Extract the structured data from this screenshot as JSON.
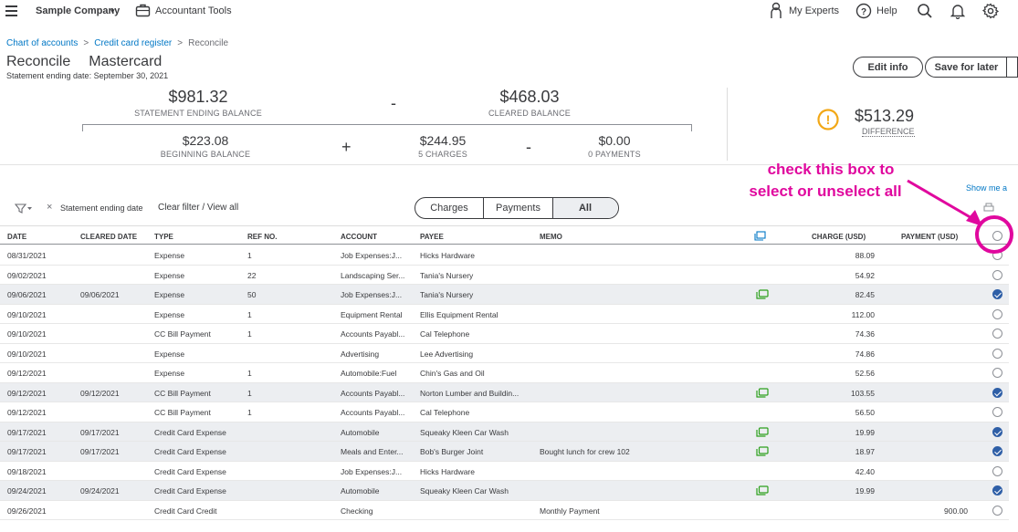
{
  "topbar": {
    "company": "Sample Company",
    "accountant_tools": "Accountant Tools",
    "my_experts": "My Experts",
    "help": "Help",
    "icons": [
      "menu-icon",
      "briefcase-icon",
      "person-icon",
      "help-icon",
      "search-icon",
      "bell-icon",
      "gear-icon"
    ]
  },
  "breadcrumb": {
    "items": [
      "Chart of accounts",
      "Credit card register",
      "Reconcile"
    ]
  },
  "header": {
    "title": "Reconcile",
    "account": "Mastercard",
    "statement_date": "Statement ending date: September 30, 2021",
    "edit_info": "Edit info",
    "save_for_later": "Save for later"
  },
  "summary": {
    "statement_ending_balance": "$981.32",
    "statement_ending_label": "STATEMENT ENDING BALANCE",
    "minus1": "-",
    "cleared_balance": "$468.03",
    "cleared_label": "CLEARED BALANCE",
    "beginning_balance": "$223.08",
    "beginning_label": "BEGINNING BALANCE",
    "plus": "+",
    "charges": "$244.95",
    "charges_label": "5 CHARGES",
    "minus2": "-",
    "payments": "$0.00",
    "payments_label": "0 PAYMENTS",
    "difference": "$513.29",
    "difference_label": "DIFFERENCE",
    "warning_symbol": "!"
  },
  "annotation": {
    "line1": "check this box to",
    "line2": "select or unselect all",
    "color": "#e0089e"
  },
  "toolbar": {
    "show_me": "Show me a",
    "filter_text": "Statement ending date",
    "clear_x": "×",
    "clear_filter": "Clear filter / View all",
    "tabs": [
      "Charges",
      "Payments",
      "All"
    ],
    "active_tab": "All"
  },
  "table": {
    "columns": {
      "date": "DATE",
      "cleared_date": "CLEARED DATE",
      "type": "TYPE",
      "ref_no": "REF NO.",
      "account": "ACCOUNT",
      "payee": "PAYEE",
      "memo": "MEMO",
      "charge": "CHARGE (USD)",
      "payment": "PAYMENT (USD)"
    },
    "rows": [
      {
        "date": "08/31/2021",
        "cleared": "",
        "type": "Expense",
        "ref": "1",
        "account": "Job Expenses:J...",
        "payee": "Hicks Hardware",
        "memo": "",
        "charge": "88.09",
        "payment": "",
        "attachment": false,
        "checked": false
      },
      {
        "date": "09/02/2021",
        "cleared": "",
        "type": "Expense",
        "ref": "22",
        "account": "Landscaping Ser...",
        "payee": "Tania's Nursery",
        "memo": "",
        "charge": "54.92",
        "payment": "",
        "attachment": false,
        "checked": false
      },
      {
        "date": "09/06/2021",
        "cleared": "09/06/2021",
        "type": "Expense",
        "ref": "50",
        "account": "Job Expenses:J...",
        "payee": "Tania's Nursery",
        "memo": "",
        "charge": "82.45",
        "payment": "",
        "attachment": true,
        "checked": true
      },
      {
        "date": "09/10/2021",
        "cleared": "",
        "type": "Expense",
        "ref": "1",
        "account": "Equipment Rental",
        "payee": "Ellis Equipment Rental",
        "memo": "",
        "charge": "112.00",
        "payment": "",
        "attachment": false,
        "checked": false
      },
      {
        "date": "09/10/2021",
        "cleared": "",
        "type": "CC Bill Payment",
        "ref": "1",
        "account": "Accounts Payabl...",
        "payee": "Cal Telephone",
        "memo": "",
        "charge": "74.36",
        "payment": "",
        "attachment": false,
        "checked": false
      },
      {
        "date": "09/10/2021",
        "cleared": "",
        "type": "Expense",
        "ref": "",
        "account": "Advertising",
        "payee": "Lee Advertising",
        "memo": "",
        "charge": "74.86",
        "payment": "",
        "attachment": false,
        "checked": false
      },
      {
        "date": "09/12/2021",
        "cleared": "",
        "type": "Expense",
        "ref": "1",
        "account": "Automobile:Fuel",
        "payee": "Chin's Gas and Oil",
        "memo": "",
        "charge": "52.56",
        "payment": "",
        "attachment": false,
        "checked": false
      },
      {
        "date": "09/12/2021",
        "cleared": "09/12/2021",
        "type": "CC Bill Payment",
        "ref": "1",
        "account": "Accounts Payabl...",
        "payee": "Norton Lumber and Buildin...",
        "memo": "",
        "charge": "103.55",
        "payment": "",
        "attachment": true,
        "checked": true
      },
      {
        "date": "09/12/2021",
        "cleared": "",
        "type": "CC Bill Payment",
        "ref": "1",
        "account": "Accounts Payabl...",
        "payee": "Cal Telephone",
        "memo": "",
        "charge": "56.50",
        "payment": "",
        "attachment": false,
        "checked": false
      },
      {
        "date": "09/17/2021",
        "cleared": "09/17/2021",
        "type": "Credit Card Expense",
        "ref": "",
        "account": "Automobile",
        "payee": "Squeaky Kleen Car Wash",
        "memo": "",
        "charge": "19.99",
        "payment": "",
        "attachment": true,
        "checked": true
      },
      {
        "date": "09/17/2021",
        "cleared": "09/17/2021",
        "type": "Credit Card Expense",
        "ref": "",
        "account": "Meals and Enter...",
        "payee": "Bob's Burger Joint",
        "memo": "Bought lunch for crew 102",
        "charge": "18.97",
        "payment": "",
        "attachment": true,
        "checked": true
      },
      {
        "date": "09/18/2021",
        "cleared": "",
        "type": "Credit Card Expense",
        "ref": "",
        "account": "Job Expenses:J...",
        "payee": "Hicks Hardware",
        "memo": "",
        "charge": "42.40",
        "payment": "",
        "attachment": false,
        "checked": false
      },
      {
        "date": "09/24/2021",
        "cleared": "09/24/2021",
        "type": "Credit Card Expense",
        "ref": "",
        "account": "Automobile",
        "payee": "Squeaky Kleen Car Wash",
        "memo": "",
        "charge": "19.99",
        "payment": "",
        "attachment": true,
        "checked": true
      },
      {
        "date": "09/26/2021",
        "cleared": "",
        "type": "Credit Card Credit",
        "ref": "",
        "account": "Checking",
        "payee": "",
        "memo": "Monthly Payment",
        "charge": "",
        "payment": "900.00",
        "attachment": false,
        "checked": false
      }
    ]
  }
}
